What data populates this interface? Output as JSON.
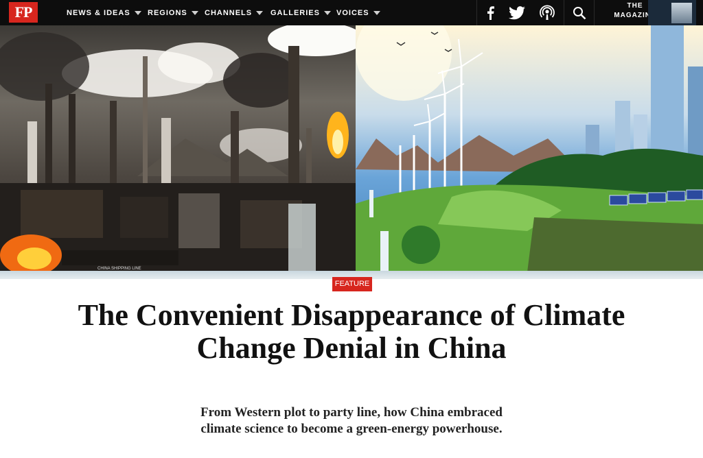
{
  "brand": {
    "logo_text": "FP",
    "red": "#d7261e"
  },
  "nav": {
    "items": [
      {
        "label": "NEWS & IDEAS"
      },
      {
        "label": "REGIONS"
      },
      {
        "label": "CHANNELS"
      },
      {
        "label": "GALLERIES"
      },
      {
        "label": "VOICES"
      }
    ],
    "magazine_label_top": "THE",
    "magazine_label_bottom": "MAGAZINE",
    "icons": [
      "facebook-icon",
      "twitter-icon",
      "podcast-icon",
      "search-icon"
    ]
  },
  "article": {
    "tag": "FEATURE",
    "headline": "The Convenient Disappearance of Climate Change Denial in China",
    "dek": "From Western plot to party line, how China embraced climate science to become a green-energy powerhouse.",
    "hero_caption_text": "CHINA SHIPPING LINE"
  }
}
